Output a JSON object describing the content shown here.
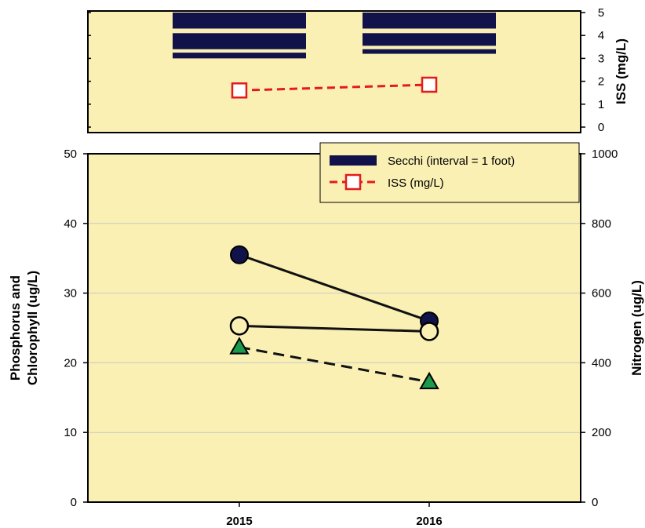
{
  "colors": {
    "plot_background": "#faf0b4",
    "secchi_bar": "#12124a",
    "iss_line": "#e41a1c",
    "phosphorus_fill": "#12124a",
    "chlorophyll_fill": "#faf0b4",
    "nitrogen_fill": "#1a9a4a",
    "gridline": "#c8c8c8"
  },
  "chart_data": [
    {
      "type": "bar",
      "panel": "top",
      "y_right_label": "ISS (mg/L)",
      "y_right_ticks": [
        "0",
        "1",
        "2",
        "3",
        "4",
        "5"
      ],
      "ylim": [
        0,
        5
      ],
      "categories": [
        "2015",
        "2016"
      ],
      "series": [
        {
          "name": "Secchi (interval = 1 foot)",
          "kind": "bar",
          "bands": [
            [
              [
                3.0,
                3.25
              ],
              [
                3.4,
                4.1
              ],
              [
                4.3,
                5.0
              ]
            ],
            [
              [
                3.2,
                3.4
              ],
              [
                3.55,
                4.1
              ],
              [
                4.3,
                5.0
              ]
            ]
          ]
        },
        {
          "name": "ISS (mg/L)",
          "kind": "line",
          "values": [
            1.6,
            1.85
          ]
        }
      ]
    },
    {
      "type": "line",
      "panel": "bottom",
      "ylabel_left_line1": "Phosphorus and",
      "ylabel_left_line2": "Chlorophyll (ug/L)",
      "ylabel_right": "Nitrogen (ug/L)",
      "ylim_left": [
        0,
        50
      ],
      "ylim_right": [
        0,
        1000
      ],
      "y_left_ticks": [
        "0",
        "10",
        "20",
        "30",
        "40",
        "50"
      ],
      "y_right_ticks": [
        "0",
        "200",
        "400",
        "600",
        "800",
        "1000"
      ],
      "categories": [
        "2015",
        "2016"
      ],
      "grid": true,
      "legend_position": "top-right",
      "series": [
        {
          "kind": "line",
          "axis": "left",
          "marker": "filled-circle",
          "values": [
            35.5,
            26.0
          ]
        },
        {
          "kind": "line",
          "axis": "left",
          "marker": "open-circle",
          "values": [
            25.3,
            24.5
          ]
        },
        {
          "kind": "dashed-line",
          "axis": "right",
          "marker": "triangle",
          "values": [
            445,
            345
          ]
        }
      ]
    }
  ]
}
